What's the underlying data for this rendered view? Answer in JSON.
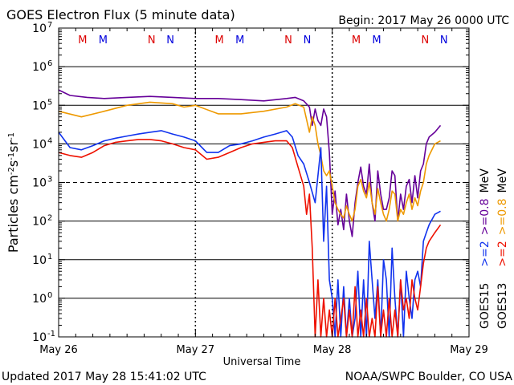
{
  "chart_data": {
    "type": "line",
    "title": "GOES Electron Flux (5 minute data)",
    "begin": "Begin: 2017 May 26 0000 UTC",
    "xlabel": "Universal Time",
    "ylabel": "Particles cm-2s-1sr-1",
    "y_scale": "log",
    "ylim": [
      0.1,
      10000000
    ],
    "y_ticks": [
      {
        "value": 0.1,
        "label": "10",
        "exp": "-1"
      },
      {
        "value": 1,
        "label": "10",
        "exp": "0"
      },
      {
        "value": 10,
        "label": "10",
        "exp": "1"
      },
      {
        "value": 100,
        "label": "10",
        "exp": "2"
      },
      {
        "value": 1000,
        "label": "10",
        "exp": "3"
      },
      {
        "value": 10000,
        "label": "10",
        "exp": "4"
      },
      {
        "value": 100000,
        "label": "10",
        "exp": "5"
      },
      {
        "value": 1000000,
        "label": "10",
        "exp": "6"
      },
      {
        "value": 10000000,
        "label": "10",
        "exp": "7"
      }
    ],
    "xlim": [
      "2017-05-26 00:00",
      "2017-05-29 00:00"
    ],
    "x_ticks": [
      {
        "hours": 0,
        "label": "May 26"
      },
      {
        "hours": 24,
        "label": "May 27"
      },
      {
        "hours": 48,
        "label": "May 28"
      },
      {
        "hours": 72,
        "label": "May 29"
      }
    ],
    "alert_threshold": 1000,
    "grid": true,
    "markers": [
      {
        "hours": 4.2,
        "label": "M",
        "color": "#dd0000"
      },
      {
        "hours": 7.8,
        "label": "M",
        "color": "#0000dd"
      },
      {
        "hours": 16.3,
        "label": "N",
        "color": "#dd0000"
      },
      {
        "hours": 19.6,
        "label": "N",
        "color": "#0000dd"
      },
      {
        "hours": 28.2,
        "label": "M",
        "color": "#dd0000"
      },
      {
        "hours": 31.8,
        "label": "M",
        "color": "#0000dd"
      },
      {
        "hours": 40.3,
        "label": "N",
        "color": "#dd0000"
      },
      {
        "hours": 43.6,
        "label": "N",
        "color": "#0000dd"
      },
      {
        "hours": 52.2,
        "label": "M",
        "color": "#dd0000"
      },
      {
        "hours": 55.8,
        "label": "M",
        "color": "#0000dd"
      },
      {
        "hours": 64.3,
        "label": "N",
        "color": "#dd0000"
      },
      {
        "hours": 67.6,
        "label": "N",
        "color": "#0000dd"
      }
    ],
    "legend": {
      "placement": "right",
      "labels": [
        {
          "label": "GOES15",
          "color": "#000000"
        },
        {
          "label": ">=2",
          "color": "#1133ee"
        },
        {
          "label": ">=0.8",
          "color": "#660099"
        },
        {
          "label": "MeV",
          "color": "#000000"
        },
        {
          "label": "GOES13",
          "color": "#000000"
        },
        {
          "label": ">=2",
          "color": "#ee1100"
        },
        {
          "label": ">=0.8",
          "color": "#ee9900"
        },
        {
          "label": "MeV",
          "color": "#000000"
        }
      ]
    },
    "series": [
      {
        "satellite": "GOES15",
        "energy": ">=0.8 MeV",
        "color": "#660099",
        "x": [
          0,
          2,
          5,
          8,
          12,
          16,
          20,
          24,
          28,
          32,
          36,
          40,
          41.5,
          43,
          44,
          44.5,
          45,
          45.5,
          46,
          46.5,
          47,
          47.5,
          48,
          48.5,
          49,
          49.5,
          50,
          50.5,
          51,
          51.5,
          52,
          52.5,
          53,
          53.5,
          54,
          54.5,
          55,
          55.5,
          56,
          56.5,
          57,
          57.5,
          58,
          58.5,
          59,
          59.5,
          60,
          60.5,
          61,
          61.5,
          62,
          62.5,
          63,
          63.5,
          64,
          64.5,
          65,
          66,
          67
        ],
        "y": [
          250000,
          180000,
          160000,
          150000,
          160000,
          170000,
          160000,
          150000,
          150000,
          140000,
          130000,
          150000,
          160000,
          130000,
          90000,
          30000,
          80000,
          40000,
          30000,
          80000,
          50000,
          6000,
          150,
          600,
          80,
          200,
          60,
          500,
          100,
          40,
          300,
          1000,
          2500,
          800,
          500,
          3000,
          300,
          100,
          2000,
          500,
          200,
          200,
          400,
          2000,
          1500,
          100,
          500,
          200,
          800,
          1200,
          300,
          1500,
          400,
          2000,
          3000,
          10000,
          15000,
          20000,
          30000
        ]
      },
      {
        "satellite": "GOES13",
        "energy": ">=0.8 MeV",
        "color": "#ee9900",
        "x": [
          0,
          4,
          8,
          12,
          16,
          20,
          22,
          24,
          28,
          32,
          36,
          40,
          41.5,
          43,
          44,
          44.5,
          45,
          45.5,
          46,
          46.5,
          47,
          47.5,
          48,
          48.5,
          49,
          49.5,
          50,
          50.5,
          51,
          51.5,
          52,
          52.5,
          53,
          53.5,
          54,
          54.5,
          55,
          55.5,
          56,
          56.5,
          57,
          57.5,
          58,
          58.5,
          59,
          59.5,
          60,
          60.5,
          61,
          61.5,
          62,
          62.5,
          63,
          63.5,
          64,
          64.5,
          65,
          66,
          67
        ],
        "y": [
          70000,
          50000,
          70000,
          100000,
          120000,
          110000,
          90000,
          100000,
          60000,
          60000,
          70000,
          90000,
          110000,
          90000,
          20000,
          50000,
          30000,
          10000,
          5000,
          2000,
          1500,
          2000,
          800,
          300,
          200,
          150,
          120,
          250,
          150,
          100,
          200,
          800,
          1200,
          600,
          400,
          1000,
          300,
          150,
          700,
          300,
          150,
          100,
          200,
          600,
          500,
          100,
          200,
          150,
          300,
          500,
          200,
          400,
          250,
          600,
          1000,
          3000,
          5000,
          10000,
          12000
        ]
      },
      {
        "satellite": "GOES15",
        "energy": ">=2 MeV",
        "color": "#1133ee",
        "x": [
          0,
          2,
          4,
          6,
          8,
          10,
          12,
          14,
          16,
          18,
          20,
          22,
          24,
          26,
          28,
          30,
          32,
          34,
          36,
          38,
          40,
          41,
          42,
          43,
          44,
          45,
          46,
          46.5,
          47,
          47.5,
          48,
          48.5,
          49,
          49.5,
          50,
          50.5,
          51,
          51.5,
          52,
          52.5,
          53,
          53.5,
          54,
          54.5,
          55,
          55.5,
          56,
          56.5,
          57,
          57.5,
          58,
          58.5,
          59,
          59.5,
          60,
          60.5,
          61,
          61.5,
          62,
          62.5,
          63,
          63.5,
          64,
          64.5,
          65,
          66,
          67
        ],
        "y": [
          20000,
          8000,
          7000,
          9000,
          12000,
          14000,
          16000,
          18000,
          20000,
          22000,
          18000,
          15000,
          12000,
          6000,
          6000,
          9000,
          10000,
          12000,
          15000,
          18000,
          22000,
          15000,
          5000,
          3000,
          1000,
          300,
          8000,
          30,
          800,
          3,
          1,
          0.1,
          3,
          0.1,
          2,
          0.1,
          1,
          0.1,
          0.3,
          5,
          0.1,
          3,
          0.1,
          30,
          3,
          0.3,
          3,
          0.1,
          10,
          3,
          0.1,
          20,
          1,
          0.1,
          3,
          0.1,
          5,
          1,
          0.3,
          3,
          5,
          2,
          30,
          50,
          80,
          150,
          180
        ]
      },
      {
        "satellite": "GOES13",
        "energy": ">=2 MeV",
        "color": "#ee1100",
        "x": [
          0,
          2,
          4,
          6,
          8,
          10,
          12,
          14,
          16,
          18,
          20,
          22,
          24,
          26,
          28,
          30,
          32,
          34,
          36,
          38,
          40,
          41,
          42,
          43,
          43.5,
          44,
          44.5,
          45,
          45.5,
          46,
          46.5,
          47,
          47.5,
          48,
          48.5,
          49,
          49.5,
          50,
          50.5,
          51,
          51.5,
          52,
          52.5,
          53,
          53.5,
          54,
          54.5,
          55,
          55.5,
          56,
          56.5,
          57,
          57.5,
          58,
          58.5,
          59,
          59.5,
          60,
          60.5,
          61,
          61.5,
          62,
          62.5,
          63,
          63.5,
          64,
          64.5,
          65,
          66,
          67
        ],
        "y": [
          6000,
          5000,
          4500,
          6000,
          9000,
          11000,
          12000,
          13000,
          13000,
          12000,
          10000,
          8000,
          7000,
          4000,
          4500,
          6000,
          8000,
          10000,
          11000,
          12000,
          12000,
          8000,
          2500,
          800,
          150,
          500,
          20,
          0.1,
          3,
          0.1,
          1,
          0.1,
          0.5,
          0.1,
          1,
          0.1,
          0.3,
          1,
          0.1,
          0.5,
          0.1,
          2,
          0.1,
          0.5,
          0.1,
          1,
          0.1,
          0.3,
          0.1,
          2,
          0.1,
          0.5,
          0.1,
          1,
          0.1,
          0.5,
          0.1,
          3,
          0.5,
          1,
          0.3,
          3,
          1,
          0.5,
          2,
          8,
          20,
          30,
          50,
          80
        ]
      }
    ]
  },
  "footer": {
    "updated": "Updated 2017 May 28 15:41:02 UTC",
    "credit": "NOAA/SWPC Boulder, CO USA"
  }
}
